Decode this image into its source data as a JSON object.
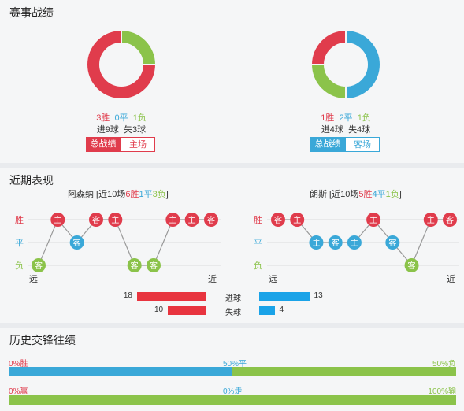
{
  "section1": {
    "title": "赛事战绩",
    "home": {
      "wins_text": "3胜",
      "draws_text": "0平",
      "losses_text": "1负",
      "goals_text": "进9球",
      "conceded_text": "失3球",
      "tab_active": "总战绩",
      "tab_inactive": "主场",
      "record": {
        "wins": 3,
        "draws": 0,
        "losses": 1
      }
    },
    "away": {
      "wins_text": "1胜",
      "draws_text": "2平",
      "losses_text": "1负",
      "goals_text": "进4球",
      "conceded_text": "失4球",
      "tab_active": "总战绩",
      "tab_inactive": "客场",
      "record": {
        "wins": 1,
        "draws": 2,
        "losses": 1
      }
    },
    "colors": {
      "win": "#e03c4c",
      "draw": "#3aa8d8",
      "loss": "#8bc34a"
    }
  },
  "section2": {
    "title": "近期表现",
    "home": {
      "name": "阿森纳",
      "prefix": " [近10场",
      "wins": "6胜",
      "draws": "1平",
      "losses": "3负",
      "suffix": "]",
      "y_labels": [
        "胜",
        "平",
        "负"
      ],
      "x_left": "远",
      "x_right": "近",
      "matches": [
        {
          "result": "负",
          "venue": "客"
        },
        {
          "result": "胜",
          "venue": "主"
        },
        {
          "result": "平",
          "venue": "客"
        },
        {
          "result": "胜",
          "venue": "客"
        },
        {
          "result": "胜",
          "venue": "主"
        },
        {
          "result": "负",
          "venue": "客"
        },
        {
          "result": "负",
          "venue": "客"
        },
        {
          "result": "胜",
          "venue": "主"
        },
        {
          "result": "胜",
          "venue": "主"
        },
        {
          "result": "胜",
          "venue": "客"
        }
      ]
    },
    "away": {
      "name": "朗斯",
      "prefix": " [近10场",
      "wins": "5胜",
      "draws": "4平",
      "losses": "1负",
      "suffix": "]",
      "y_labels": [
        "胜",
        "平",
        "负"
      ],
      "x_left": "远",
      "x_right": "近",
      "matches": [
        {
          "result": "胜",
          "venue": "客"
        },
        {
          "result": "胜",
          "venue": "主"
        },
        {
          "result": "平",
          "venue": "主"
        },
        {
          "result": "平",
          "venue": "客"
        },
        {
          "result": "平",
          "venue": "主"
        },
        {
          "result": "胜",
          "venue": "主"
        },
        {
          "result": "平",
          "venue": "客"
        },
        {
          "result": "负",
          "venue": "客"
        },
        {
          "result": "胜",
          "venue": "主"
        },
        {
          "result": "胜",
          "venue": "客"
        }
      ]
    },
    "goals_label": "进球",
    "conceded_label": "失球",
    "home_goals": 18,
    "away_goals": 13,
    "home_conceded": 10,
    "away_conceded": 4
  },
  "section3": {
    "title": "历史交锋往绩",
    "row1": {
      "left": "0%胜",
      "mid": "50%平",
      "right": "50%负",
      "win": 0,
      "draw": 50,
      "loss": 50
    },
    "row2": {
      "left": "0%赢",
      "mid": "0%走",
      "right": "100%输",
      "win": 0,
      "draw": 0,
      "loss": 100
    }
  }
}
